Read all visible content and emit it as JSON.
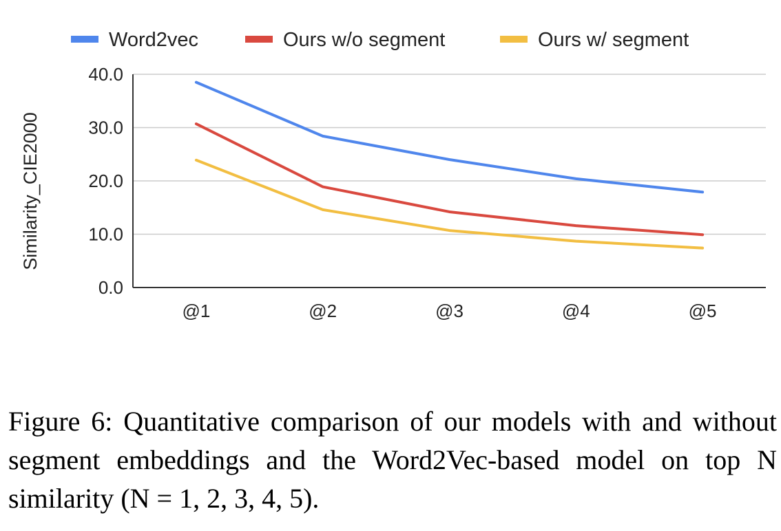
{
  "chart_data": {
    "type": "line",
    "categories": [
      "@1",
      "@2",
      "@3",
      "@4",
      "@5"
    ],
    "series": [
      {
        "name": "Word2vec",
        "values": [
          38.5,
          28.4,
          24.0,
          20.4,
          17.9
        ],
        "color": "#4F86EC"
      },
      {
        "name": "Ours w/o segment",
        "values": [
          30.7,
          18.9,
          14.2,
          11.6,
          9.9
        ],
        "color": "#D9493F"
      },
      {
        "name": "Ours w/ segment",
        "values": [
          23.9,
          14.6,
          10.7,
          8.7,
          7.4
        ],
        "color": "#F2BE42"
      }
    ],
    "ylabel": "Similarity_CIE2000",
    "xlabel": "",
    "ylim": [
      0,
      40
    ],
    "yticks": [
      "0.0",
      "10.0",
      "20.0",
      "30.0",
      "40.0"
    ],
    "grid": true,
    "legend_position": "top"
  },
  "caption": "Figure 6: Quantitative comparison of our models with and without segment embeddings and the Word2Vec-based model on top N similarity (N = 1, 2, 3, 4, 5)."
}
